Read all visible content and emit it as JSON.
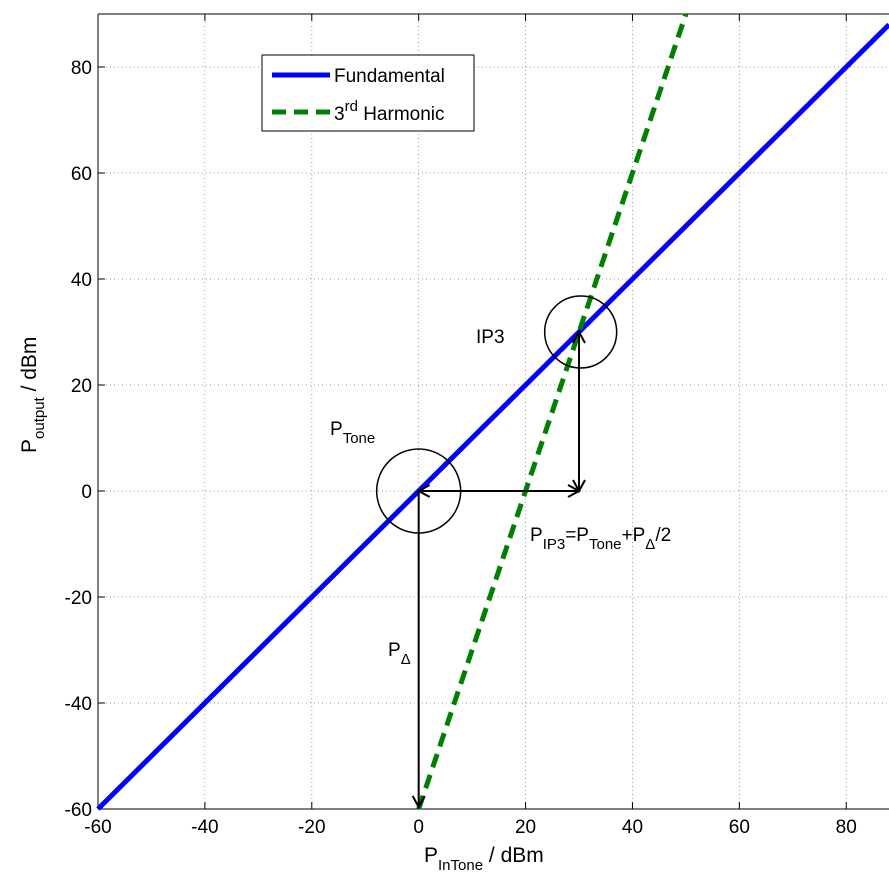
{
  "chart_data": {
    "type": "line",
    "xlim": [
      -60,
      88
    ],
    "ylim": [
      -60,
      90
    ],
    "x_ticks": [
      -60,
      -40,
      -20,
      0,
      20,
      40,
      60,
      80
    ],
    "y_ticks": [
      -60,
      -40,
      -20,
      0,
      20,
      40,
      60,
      80
    ],
    "x_tick_labels": [
      "-60",
      "-40",
      "-20",
      "0",
      "20",
      "40",
      "60",
      "80"
    ],
    "y_tick_labels": [
      "-60",
      "-40",
      "-20",
      "0",
      "20",
      "40",
      "60",
      "80"
    ],
    "grid": true,
    "legend_position": "top-left",
    "xlabel": {
      "main": "P",
      "sub": "InTone",
      "rest": " / dBm"
    },
    "ylabel": {
      "main": "P",
      "sub": "output",
      "rest": " / dBm"
    },
    "series": [
      {
        "name": "Fundamental",
        "legend": {
          "main": "Fundamental"
        },
        "style": "solid",
        "color": "#0000ff",
        "x": [
          -60,
          88
        ],
        "y": [
          -60,
          88
        ]
      },
      {
        "name": "3rd Harmonic",
        "legend": {
          "main": "3",
          "sup": "rd",
          "rest": " Harmonic"
        },
        "style": "dashed",
        "color": "#008000",
        "x": [
          0,
          50
        ],
        "y": [
          -60,
          90
        ]
      }
    ],
    "annotations": {
      "ip3": {
        "text": "IP3",
        "x": 29,
        "y": 30
      },
      "ptone": {
        "main": "P",
        "sub": "Tone",
        "x": 0,
        "y": 0
      },
      "pdelta": {
        "main": "P",
        "sub": "Δ"
      },
      "formula": {
        "p1": "P",
        "s1": "IP3",
        "m1": "=P",
        "s2": "Tone",
        "m2": "+P",
        "s3": "Δ",
        "m3": "/2"
      }
    }
  }
}
